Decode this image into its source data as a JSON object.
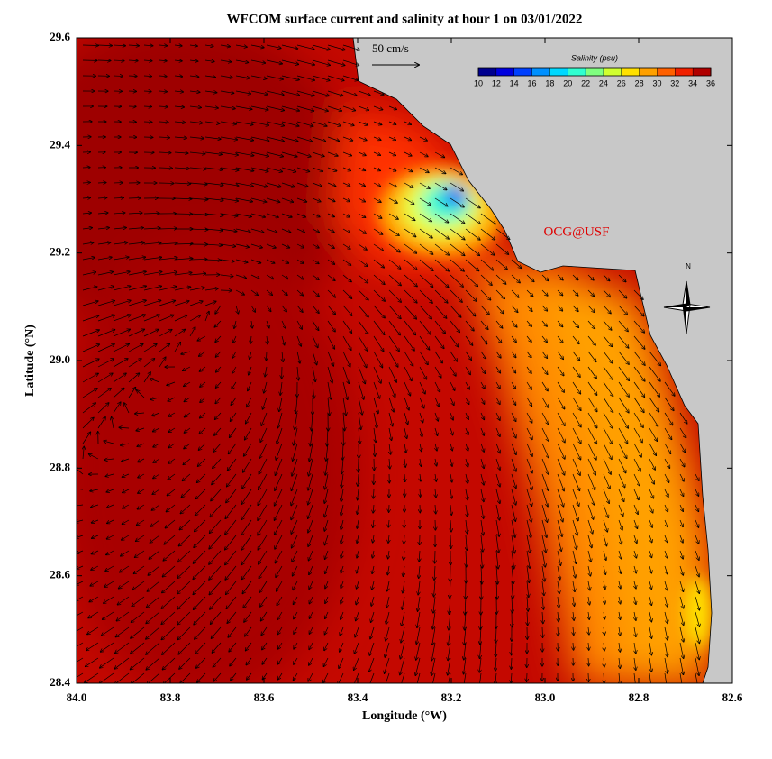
{
  "title": "WFCOM surface current and salinity at hour 1 on 03/01/2022",
  "axes": {
    "type": "map",
    "xlabel": "Longitude (°W)",
    "ylabel": "Latitude (°N)",
    "xlim": [
      84.0,
      82.6
    ],
    "ylim": [
      28.4,
      29.6
    ],
    "xticks": [
      {
        "value": 84.0,
        "label": "84.0"
      },
      83.8,
      83.6,
      83.4,
      83.2,
      {
        "value": 83.0,
        "label": "83.0"
      },
      82.8,
      82.6
    ],
    "yticks": [
      28.4,
      28.6,
      28.8,
      {
        "value": 29.0,
        "label": "29.0"
      },
      29.2,
      29.4,
      29.6
    ]
  },
  "colorbar": {
    "title": "Salinity (psu)",
    "range": [
      10,
      36
    ],
    "ticks": [
      10,
      12,
      14,
      16,
      18,
      20,
      22,
      24,
      26,
      28,
      30,
      32,
      34,
      36
    ],
    "colors": [
      "#00008f",
      "#0000df",
      "#0040ff",
      "#0090ff",
      "#00d8ff",
      "#30ffd0",
      "#80ff80",
      "#d0ff30",
      "#ffe000",
      "#ffa000",
      "#ff6000",
      "#f02000",
      "#b00000"
    ]
  },
  "scale_label": "50 cm/s",
  "watermark": "OCG@USF",
  "compass": "N"
}
